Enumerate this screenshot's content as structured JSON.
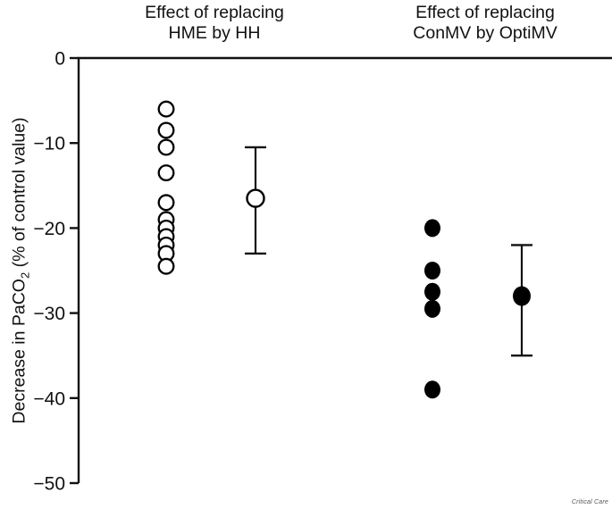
{
  "figure": {
    "source_label": "Critical Care"
  },
  "chart_data": {
    "type": "scatter",
    "title": "",
    "ylabel": "Decrease in PaCO2 (% of control value)",
    "ylabel_parts": {
      "pre": "Decrease in PaCO",
      "sub": "2",
      "post": " (% of control value)"
    },
    "ylim": [
      -50,
      0
    ],
    "yticks": [
      0,
      -10,
      -20,
      -30,
      -40,
      -50
    ],
    "grid": false,
    "legend": "none",
    "marker_colors": {
      "open": "#ffffff",
      "filled": "#000000",
      "stroke": "#000000"
    },
    "groups": [
      {
        "label": "Effect of replacing HME by HH",
        "label_lines": [
          "Effect of replacing",
          "HME by HH"
        ],
        "marker": "open-circle",
        "values": [
          -6,
          -8.5,
          -10.5,
          -13.5,
          -17,
          -19,
          -20,
          -21,
          -22,
          -23,
          -24.5
        ],
        "summary": {
          "mean": -16.5,
          "upper": -10.5,
          "lower": -23
        }
      },
      {
        "label": "Effect of replacing ConMV by OptiMV",
        "label_lines": [
          "Effect of replacing",
          "ConMV by OptiMV"
        ],
        "marker": "filled-circle",
        "values": [
          -20,
          -25,
          -27.5,
          -29.5,
          -39
        ],
        "summary": {
          "mean": -28,
          "upper": -22,
          "lower": -35
        }
      }
    ]
  }
}
